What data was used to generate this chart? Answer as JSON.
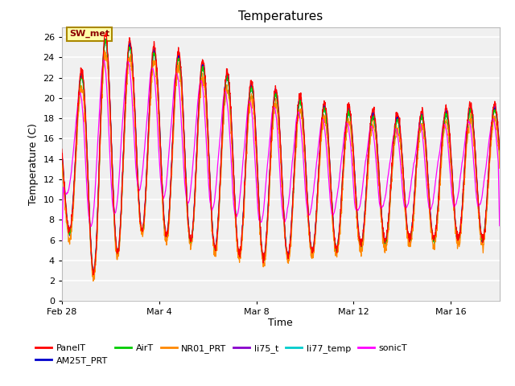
{
  "title": "Temperatures",
  "xlabel": "Time",
  "ylabel": "Temperature (C)",
  "ylim": [
    0,
    27
  ],
  "yticks": [
    0,
    2,
    4,
    6,
    8,
    10,
    12,
    14,
    16,
    18,
    20,
    22,
    24,
    26
  ],
  "fig_bg_color": "#ffffff",
  "plot_bg_color": "#f0f0f0",
  "series_colors": {
    "PanelT": "#ff0000",
    "AM25T_PRT": "#0000cc",
    "AirT": "#00cc00",
    "NR01_PRT": "#ff8800",
    "li75_t": "#8800cc",
    "li77_temp": "#00cccc",
    "sonicT": "#ff00ff"
  },
  "annotation_text": "SW_met",
  "x_tick_labels": [
    "Feb 28",
    "Mar 4",
    "Mar 8",
    "Mar 12",
    "Mar 16"
  ],
  "x_tick_positions": [
    0,
    4,
    8,
    12,
    16
  ],
  "xlim": [
    0,
    18
  ]
}
